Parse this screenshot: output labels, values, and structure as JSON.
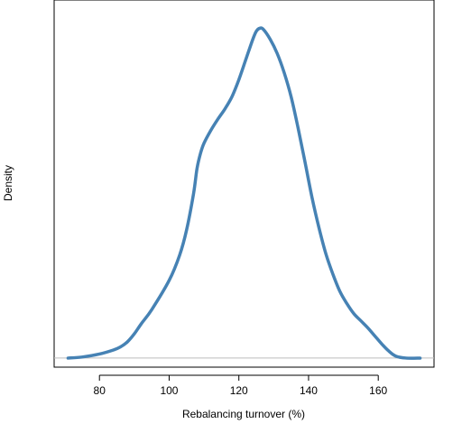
{
  "chart_data": {
    "type": "area",
    "title": "",
    "xlabel": "Rebalancing turnover (%)",
    "ylabel": "Density",
    "xlim": [
      67,
      176
    ],
    "ylim": [
      -0.0009,
      0.0355
    ],
    "y_ticks_shown": false,
    "grid": false,
    "legend": "none",
    "baseline": 0,
    "x_ticks": [
      80,
      100,
      120,
      140,
      160
    ],
    "series": [
      {
        "color": "#4682b4",
        "baseline_color": "#bebebe",
        "x": [
          71,
          75,
          80,
          84,
          86,
          88,
          90,
          92,
          95,
          100,
          103,
          105,
          107,
          108,
          109,
          110,
          112,
          114,
          116,
          118,
          120,
          122,
          124,
          125,
          126,
          127,
          129,
          131,
          133,
          135,
          137,
          139,
          141,
          143,
          145,
          147,
          149,
          151,
          153,
          155,
          157,
          159,
          161,
          163,
          165,
          168,
          172
        ],
        "y": [
          0.0,
          0.0001,
          0.0004,
          0.0008,
          0.0011,
          0.0016,
          0.0024,
          0.0034,
          0.0048,
          0.0077,
          0.0102,
          0.0127,
          0.0163,
          0.0188,
          0.0203,
          0.0213,
          0.0226,
          0.0237,
          0.0247,
          0.0259,
          0.0276,
          0.0296,
          0.0316,
          0.0324,
          0.0327,
          0.0326,
          0.0316,
          0.0302,
          0.0283,
          0.0259,
          0.0228,
          0.0194,
          0.0159,
          0.0129,
          0.0103,
          0.0083,
          0.0066,
          0.0054,
          0.0044,
          0.0037,
          0.003,
          0.0022,
          0.0014,
          0.0007,
          0.0002,
          0.0,
          0.0
        ]
      }
    ]
  }
}
